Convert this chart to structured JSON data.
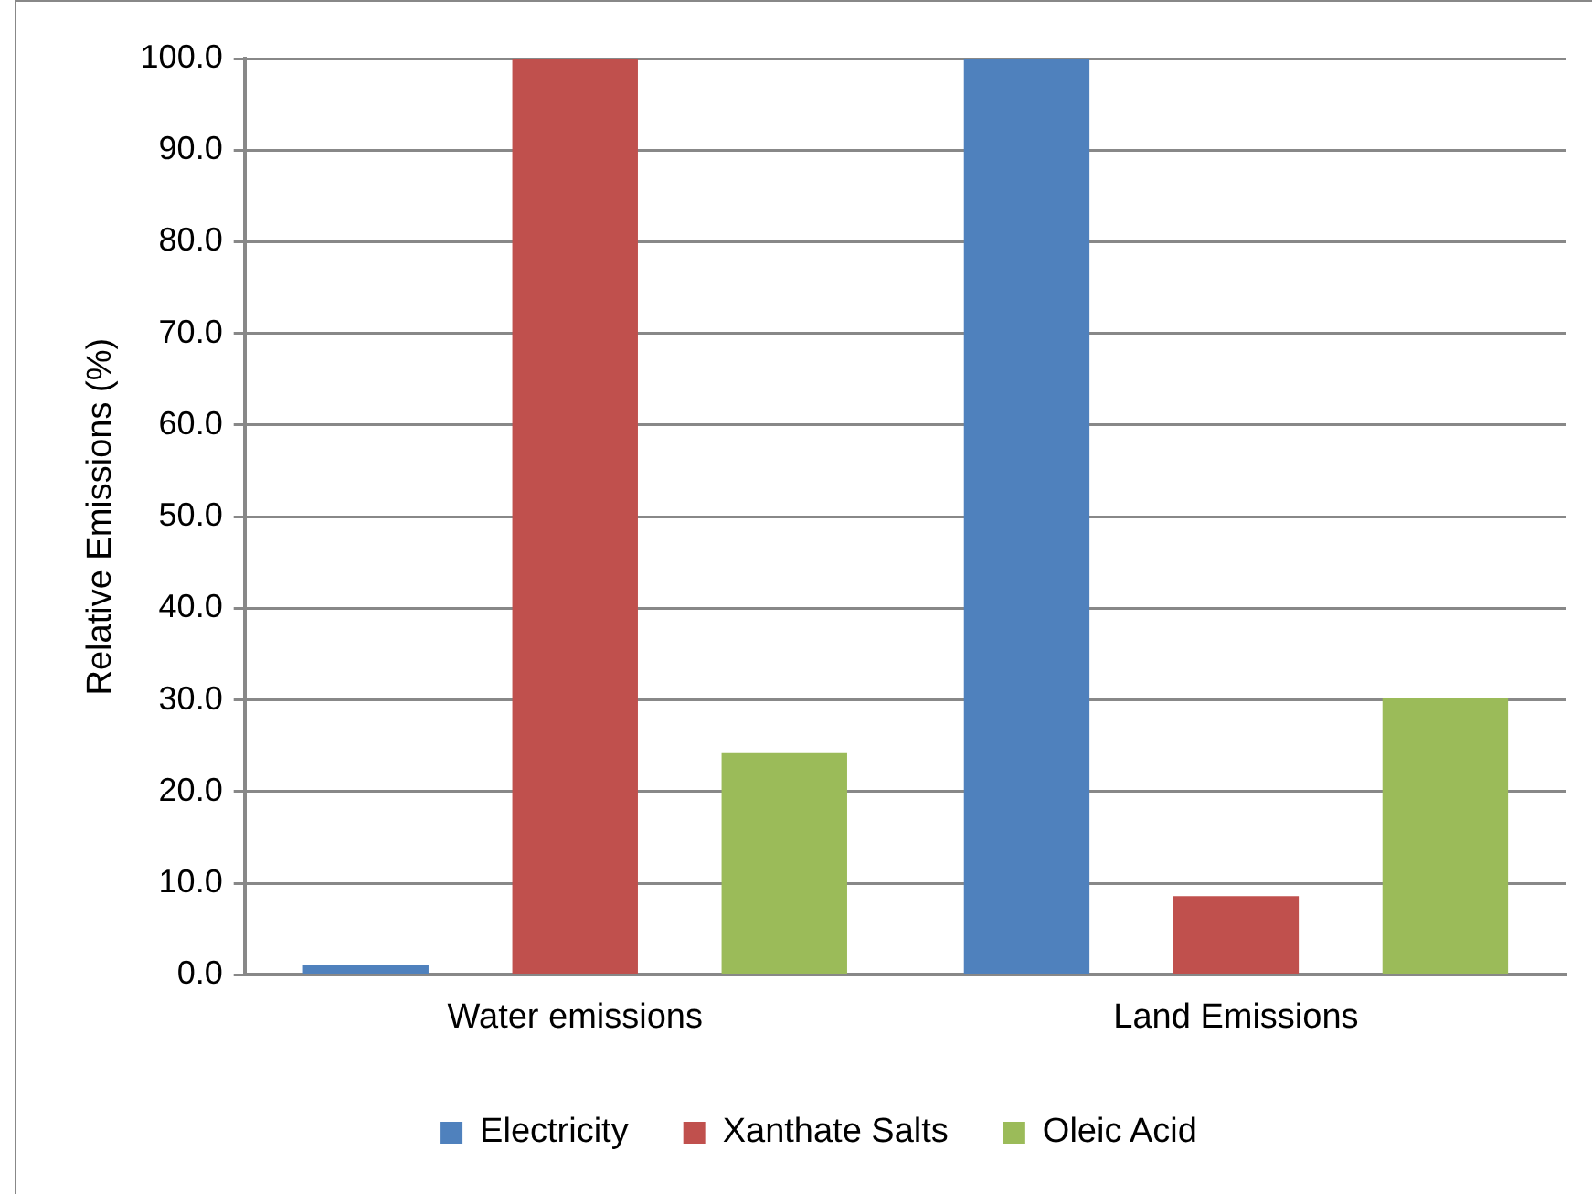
{
  "chart_data": {
    "type": "bar",
    "ylabel": "Relative Emissions (%)",
    "categories": [
      "Water emissions",
      "Land Emissions"
    ],
    "series": [
      {
        "name": "Electricity",
        "color": "#4f81bd",
        "values": [
          1.1,
          100
        ]
      },
      {
        "name": "Xanthate Salts",
        "color": "#c0504d",
        "values": [
          100,
          8.6
        ]
      },
      {
        "name": "Oleic Acid",
        "color": "#9bbb59",
        "values": [
          24.2,
          30.2
        ]
      }
    ],
    "ylim": [
      0,
      100
    ],
    "yticks": [
      {
        "value": 0,
        "label": "0.0"
      },
      {
        "value": 10,
        "label": "10.0"
      },
      {
        "value": 20,
        "label": "20.0"
      },
      {
        "value": 30,
        "label": "30.0"
      },
      {
        "value": 40,
        "label": "40.0"
      },
      {
        "value": 50,
        "label": "50.0"
      },
      {
        "value": 60,
        "label": "60.0"
      },
      {
        "value": 70,
        "label": "70.0"
      },
      {
        "value": 80,
        "label": "80.0"
      },
      {
        "value": 90,
        "label": "90.0"
      },
      {
        "value": 100,
        "label": "100.0"
      }
    ],
    "grid": "y",
    "legend": "bottom"
  }
}
